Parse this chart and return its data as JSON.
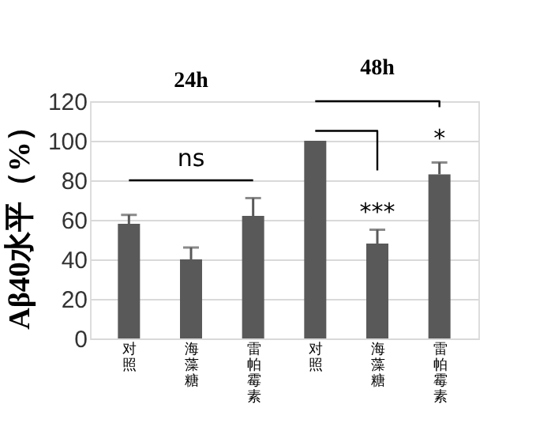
{
  "chart_data": {
    "type": "bar",
    "ylabel": "Aβ40水平（%）",
    "categories": [
      "对照",
      "海藻糖",
      "雷帕霉素",
      "对照",
      "海藻糖",
      "雷帕霉素"
    ],
    "values": [
      58,
      40,
      62,
      100,
      48,
      83
    ],
    "errors": [
      4.5,
      6,
      9,
      null,
      7,
      6
    ],
    "color": "#595959",
    "ylim": [
      0,
      120
    ],
    "yticks": [
      0,
      20,
      40,
      60,
      80,
      100,
      120
    ],
    "grid": "y",
    "annotations": [
      "24h",
      "48h",
      "ns",
      "***",
      "*"
    ]
  }
}
